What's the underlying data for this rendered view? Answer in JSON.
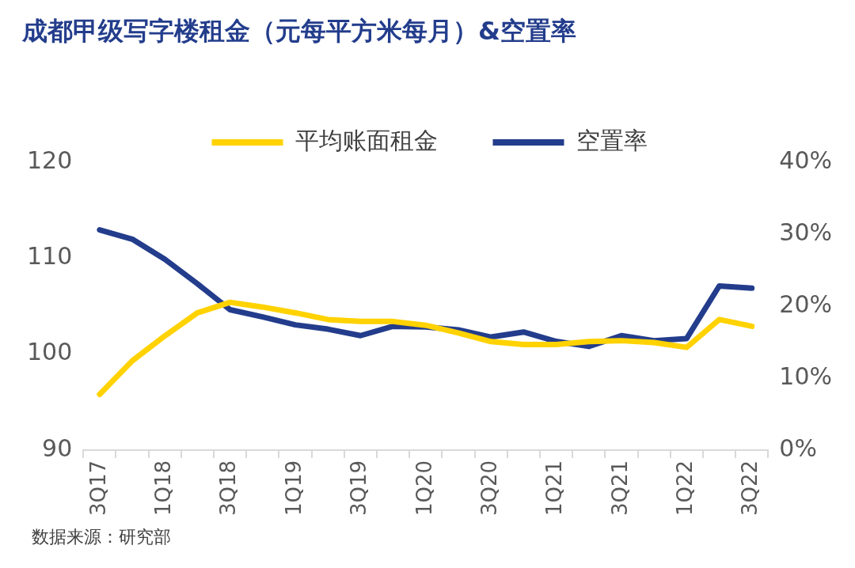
{
  "chart_data": {
    "type": "line",
    "title": "成都甲级写字楼租金（元每平方米每月）&空置率",
    "categories": [
      "3Q17",
      null,
      "1Q18",
      null,
      "3Q18",
      null,
      "1Q19",
      null,
      "3Q19",
      null,
      "1Q20",
      null,
      "3Q20",
      null,
      "1Q21",
      null,
      "3Q21",
      null,
      "1Q22",
      null,
      "3Q22"
    ],
    "series": [
      {
        "name": "平均账面租金",
        "color": "#ffd200",
        "values": [
          95.8,
          99.3,
          101.9,
          104.3,
          105.4,
          104.9,
          104.3,
          103.6,
          103.4,
          103.4,
          103.0,
          102.2,
          101.3,
          101.0,
          101.0,
          101.3,
          101.4,
          101.2,
          100.7,
          103.6,
          102.9
        ]
      },
      {
        "name": "空置率",
        "color": "#233d8c",
        "axis": "y2",
        "values": [
          30.6,
          29.3,
          26.5,
          23.1,
          19.5,
          18.5,
          17.4,
          16.8,
          15.9,
          17.2,
          17.1,
          16.7,
          15.7,
          16.4,
          15.1,
          14.4,
          15.9,
          15.2,
          15.5,
          22.8,
          22.5
        ]
      }
    ],
    "ylim": [
      90,
      120
    ],
    "yticks": [
      90,
      100,
      110,
      120
    ],
    "y2lim": [
      0,
      40
    ],
    "y2ticks": [
      {
        "value": 0,
        "label": "0%"
      },
      {
        "value": 10,
        "label": "10%"
      },
      {
        "value": 20,
        "label": "20%"
      },
      {
        "value": 30,
        "label": "30%"
      },
      {
        "value": 40,
        "label": "40%"
      }
    ],
    "grid": false,
    "legend": "top",
    "marker": "none",
    "line_style": "solid",
    "annotations": [
      "数据来源：研究部"
    ]
  }
}
